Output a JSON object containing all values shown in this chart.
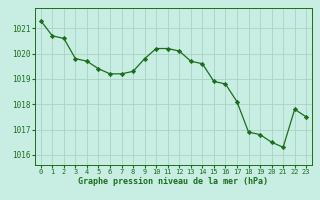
{
  "hours": [
    0,
    1,
    2,
    3,
    4,
    5,
    6,
    7,
    8,
    9,
    10,
    11,
    12,
    13,
    14,
    15,
    16,
    17,
    18,
    19,
    20,
    21,
    22,
    23
  ],
  "pressure": [
    1021.3,
    1020.7,
    1020.6,
    1019.8,
    1019.7,
    1019.4,
    1019.2,
    1019.2,
    1019.3,
    1019.8,
    1020.2,
    1020.2,
    1020.1,
    1019.7,
    1019.6,
    1018.9,
    1018.8,
    1018.1,
    1016.9,
    1016.8,
    1016.5,
    1016.3,
    1017.8,
    1017.5
  ],
  "line_color": "#1a6e1a",
  "marker": "D",
  "marker_size": 2.2,
  "bg_color": "#c8eee4",
  "grid_color": "#a8d4c4",
  "xlabel": "Graphe pression niveau de la mer (hPa)",
  "xlabel_color": "#1a6e1a",
  "tick_color": "#1a6e1a",
  "ylim": [
    1015.6,
    1021.8
  ],
  "yticks": [
    1016,
    1017,
    1018,
    1019,
    1020,
    1021
  ],
  "xticks": [
    0,
    1,
    2,
    3,
    4,
    5,
    6,
    7,
    8,
    9,
    10,
    11,
    12,
    13,
    14,
    15,
    16,
    17,
    18,
    19,
    20,
    21,
    22,
    23
  ]
}
